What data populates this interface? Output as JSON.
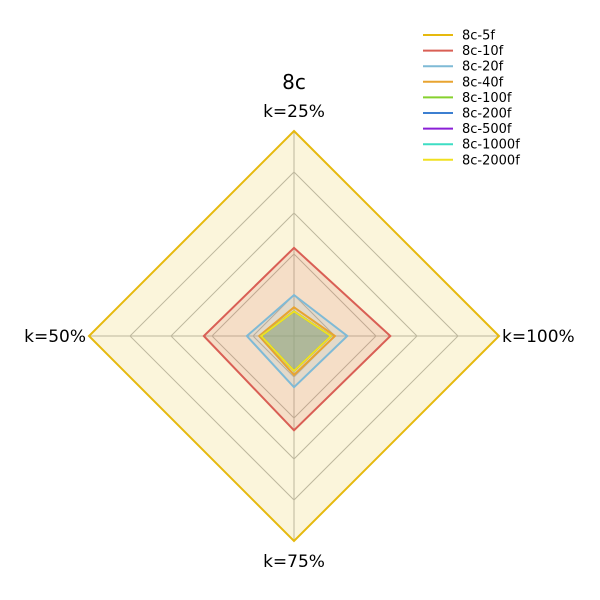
{
  "chart_data": {
    "type": "radar",
    "title": "8c",
    "axes": [
      "k=25%",
      "k=100%",
      "k=75%",
      "k=50%"
    ],
    "rmax": 1.0,
    "grid_rings": [
      0.2,
      0.4,
      0.6,
      0.8,
      1.0
    ],
    "grid": true,
    "legend_position": "top-right",
    "series": [
      {
        "name": "8c-5f",
        "color": "#E6B90E",
        "values": [
          1.0,
          1.0,
          1.0,
          1.0
        ]
      },
      {
        "name": "8c-10f",
        "color": "#D95F55",
        "values": [
          0.43,
          0.47,
          0.46,
          0.44
        ]
      },
      {
        "name": "8c-20f",
        "color": "#7FBAD6",
        "values": [
          0.2,
          0.26,
          0.25,
          0.23
        ]
      },
      {
        "name": "8c-40f",
        "color": "#E8A430",
        "values": [
          0.14,
          0.2,
          0.19,
          0.17
        ]
      },
      {
        "name": "8c-100f",
        "color": "#86D12E",
        "values": [
          0.12,
          0.18,
          0.17,
          0.16
        ]
      },
      {
        "name": "8c-200f",
        "color": "#3C7FD1",
        "values": [
          0.12,
          0.18,
          0.17,
          0.16
        ]
      },
      {
        "name": "8c-500f",
        "color": "#8A1FD6",
        "values": [
          0.12,
          0.18,
          0.17,
          0.16
        ]
      },
      {
        "name": "8c-1000f",
        "color": "#3DDDC4",
        "values": [
          0.12,
          0.18,
          0.17,
          0.16
        ]
      },
      {
        "name": "8c-2000f",
        "color": "#F0E020",
        "values": [
          0.12,
          0.18,
          0.17,
          0.16
        ]
      }
    ]
  }
}
